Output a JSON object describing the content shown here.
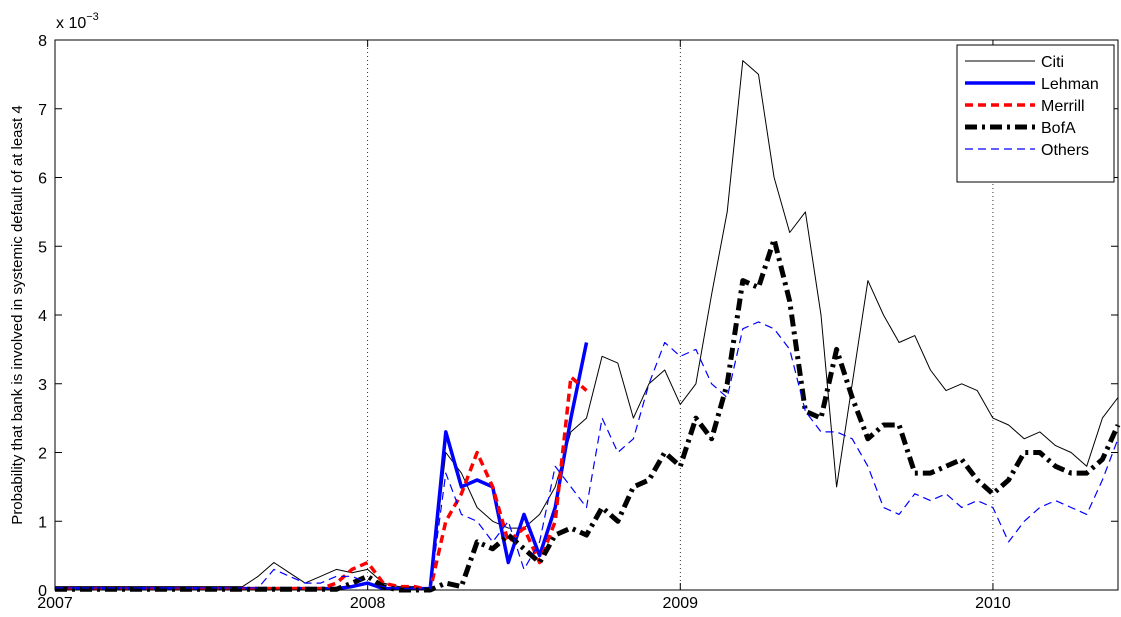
{
  "chart_data": {
    "type": "line",
    "y_label": "Probability that bank is involved in systemic default of at least 4",
    "y_multiplier": {
      "base": "x 10",
      "exponent": "−3"
    },
    "xlim": [
      2007,
      2010.4
    ],
    "xticks": [
      2007,
      2008,
      2009,
      2010
    ],
    "ylim": [
      0,
      8
    ],
    "yticks": [
      0,
      1,
      2,
      3,
      4,
      5,
      6,
      7,
      8
    ],
    "x_grid": true,
    "legend": "top-right",
    "x": [
      2007,
      2007.05,
      2007.1,
      2007.15,
      2007.2,
      2007.25,
      2007.3,
      2007.35,
      2007.4,
      2007.45,
      2007.5,
      2007.55,
      2007.6,
      2007.65,
      2007.7,
      2007.75,
      2007.8,
      2007.85,
      2007.9,
      2007.95,
      2008,
      2008.05,
      2008.1,
      2008.15,
      2008.2,
      2008.25,
      2008.3,
      2008.35,
      2008.4,
      2008.45,
      2008.5,
      2008.55,
      2008.6,
      2008.65,
      2008.7,
      2008.75,
      2008.8,
      2008.85,
      2008.9,
      2008.95,
      2009,
      2009.05,
      2009.1,
      2009.15,
      2009.2,
      2009.25,
      2009.3,
      2009.35,
      2009.4,
      2009.45,
      2009.5,
      2009.55,
      2009.6,
      2009.65,
      2009.7,
      2009.75,
      2009.8,
      2009.85,
      2009.9,
      2009.95,
      2010,
      2010.05,
      2010.1,
      2010.15,
      2010.2,
      2010.25,
      2010.3,
      2010.35,
      2010.4
    ],
    "series": [
      {
        "name": "Citi",
        "color": "#000000",
        "line_style": "solid",
        "line_width": 1,
        "values": [
          0.05,
          0.05,
          0.05,
          0.05,
          0.05,
          0.05,
          0.05,
          0.05,
          0.05,
          0.05,
          0.05,
          0.05,
          0.05,
          0.2,
          0.4,
          0.25,
          0.1,
          0.2,
          0.3,
          0.25,
          0.3,
          0.1,
          0.05,
          0.05,
          0,
          2.0,
          1.7,
          1.2,
          1.0,
          0.9,
          0.9,
          1.1,
          1.5,
          2.3,
          2.5,
          3.4,
          3.3,
          2.5,
          3.0,
          3.2,
          2.7,
          3.0,
          4.3,
          5.5,
          7.7,
          7.5,
          6.0,
          5.2,
          5.5,
          4.0,
          1.5,
          3.0,
          4.5,
          4.0,
          3.6,
          3.7,
          3.2,
          2.9,
          3.0,
          2.9,
          2.5,
          2.4,
          2.2,
          2.3,
          2.1,
          2.0,
          1.8,
          2.5,
          2.8
        ]
      },
      {
        "name": "Lehman",
        "color": "#0000ff",
        "line_style": "solid",
        "line_width": 3.5,
        "values": [
          0.02,
          0.02,
          0.02,
          0.02,
          0.02,
          0.02,
          0.02,
          0.02,
          0.02,
          0.02,
          0.02,
          0.02,
          0.02,
          0.02,
          0.02,
          0.02,
          0.02,
          0.02,
          0.02,
          0.05,
          0.1,
          0.02,
          0.02,
          0.02,
          0.02,
          2.3,
          1.5,
          1.6,
          1.5,
          0.4,
          1.1,
          0.5,
          1.2,
          2.5,
          3.6,
          null,
          null,
          null,
          null,
          null,
          null,
          null,
          null,
          null,
          null,
          null,
          null,
          null,
          null,
          null,
          null,
          null,
          null,
          null,
          null,
          null,
          null,
          null,
          null,
          null,
          null,
          null,
          null,
          null,
          null,
          null,
          null,
          null,
          null
        ]
      },
      {
        "name": "Merrill",
        "color": "#ff0000",
        "line_style": "dashed",
        "line_width": 3.5,
        "values": [
          0.02,
          0.02,
          0.02,
          0.02,
          0.02,
          0.02,
          0.02,
          0.02,
          0.02,
          0.02,
          0.02,
          0.02,
          0.02,
          0.02,
          0.02,
          0.02,
          0.02,
          0.02,
          0.1,
          0.3,
          0.4,
          0.1,
          0.05,
          0.05,
          0,
          1.0,
          1.4,
          2.0,
          1.5,
          0.7,
          0.9,
          0.4,
          1.0,
          3.1,
          2.9,
          null,
          null,
          null,
          null,
          null,
          null,
          null,
          null,
          null,
          null,
          null,
          null,
          null,
          null,
          null,
          null,
          null,
          null,
          null,
          null,
          null,
          null,
          null,
          null,
          null,
          null,
          null,
          null,
          null,
          null,
          null,
          null,
          null,
          null
        ]
      },
      {
        "name": "BofA",
        "color": "#000000",
        "line_style": "dashdot",
        "line_width": 5,
        "values": [
          0.01,
          0.01,
          0.01,
          0.01,
          0.01,
          0.01,
          0.01,
          0.01,
          0.01,
          0.01,
          0.01,
          0.01,
          0.01,
          0.01,
          0.01,
          0.01,
          0.01,
          0.01,
          0.01,
          0.1,
          0.2,
          0.05,
          0,
          0,
          0,
          0.1,
          0.05,
          0.7,
          0.6,
          0.8,
          0.6,
          0.4,
          0.8,
          0.9,
          0.8,
          1.2,
          1.0,
          1.5,
          1.6,
          2.0,
          1.8,
          2.5,
          2.2,
          3.0,
          4.5,
          4.4,
          5.1,
          4.2,
          2.6,
          2.5,
          3.5,
          2.8,
          2.2,
          2.4,
          2.4,
          1.7,
          1.7,
          1.8,
          1.9,
          1.6,
          1.4,
          1.6,
          2.0,
          2.0,
          1.8,
          1.7,
          1.7,
          1.9,
          2.4
        ]
      },
      {
        "name": "Others",
        "color": "#0000ff",
        "line_style": "dashed",
        "line_width": 1.2,
        "values": [
          0.03,
          0.03,
          0.03,
          0.03,
          0.03,
          0.03,
          0.03,
          0.03,
          0.03,
          0.03,
          0.03,
          0.03,
          0.03,
          0.03,
          0.3,
          0.2,
          0.1,
          0.1,
          0.2,
          0.2,
          0.1,
          0.05,
          0.02,
          0.02,
          0,
          1.7,
          1.1,
          1.0,
          0.7,
          1.0,
          0.3,
          0.7,
          1.8,
          1.5,
          1.2,
          2.5,
          2.0,
          2.2,
          3.0,
          3.6,
          3.4,
          3.5,
          3.0,
          2.8,
          3.8,
          3.9,
          3.8,
          3.5,
          2.6,
          2.3,
          2.3,
          2.2,
          1.8,
          1.2,
          1.1,
          1.4,
          1.3,
          1.4,
          1.2,
          1.3,
          1.2,
          0.7,
          1.0,
          1.2,
          1.3,
          1.2,
          1.1,
          1.6,
          2.2
        ]
      }
    ]
  }
}
